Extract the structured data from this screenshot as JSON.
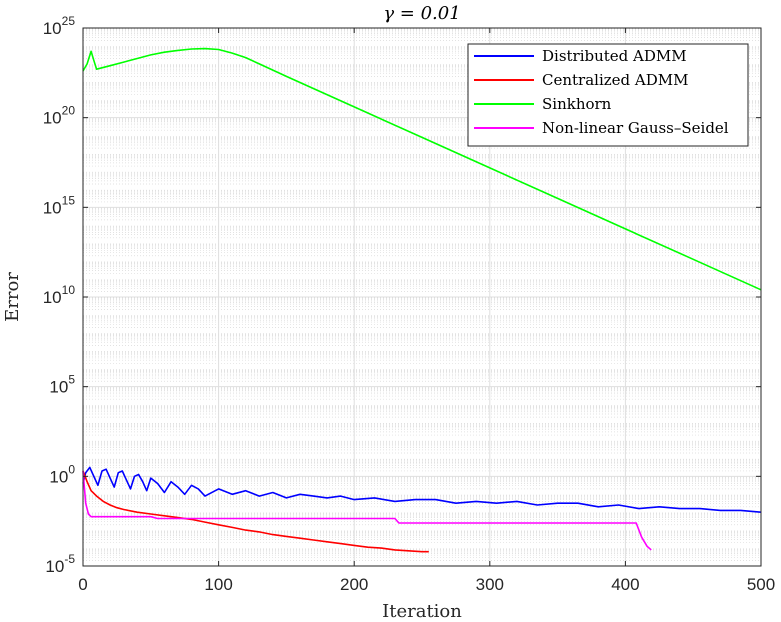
{
  "chart_data": {
    "type": "line",
    "title": "γ = 0.01",
    "xlabel": "Iteration",
    "ylabel": "Error",
    "xlim": [
      0,
      500
    ],
    "ylim_exponent": [
      -5,
      25
    ],
    "yscale": "log",
    "grid": true,
    "legend_placement": "top-right",
    "x_ticks": [
      0,
      100,
      200,
      300,
      400,
      500
    ],
    "y_tick_exponents": [
      -5,
      0,
      5,
      10,
      15,
      20,
      25
    ],
    "y_tick_base": "10",
    "series": [
      {
        "name": "Distributed ADMM",
        "color": "#0000ff",
        "log10_values_note": "y values given as log10(error)",
        "x": [
          0,
          2,
          5,
          8,
          11,
          14,
          17,
          20,
          23,
          26,
          29,
          32,
          35,
          38,
          41,
          44,
          47,
          50,
          55,
          60,
          65,
          70,
          75,
          80,
          85,
          90,
          100,
          110,
          120,
          130,
          140,
          150,
          160,
          170,
          180,
          190,
          200,
          215,
          230,
          245,
          260,
          275,
          290,
          305,
          320,
          335,
          350,
          365,
          380,
          395,
          410,
          425,
          440,
          455,
          470,
          485,
          500
        ],
        "y": [
          -0.4,
          0.2,
          0.5,
          0.0,
          -0.5,
          0.3,
          0.4,
          -0.1,
          -0.6,
          0.2,
          0.3,
          -0.2,
          -0.7,
          0.0,
          0.1,
          -0.3,
          -0.8,
          -0.1,
          -0.4,
          -0.9,
          -0.3,
          -0.6,
          -1.0,
          -0.5,
          -0.7,
          -1.1,
          -0.7,
          -1.0,
          -0.8,
          -1.1,
          -0.9,
          -1.2,
          -1.0,
          -1.1,
          -1.2,
          -1.1,
          -1.3,
          -1.2,
          -1.4,
          -1.3,
          -1.3,
          -1.5,
          -1.4,
          -1.5,
          -1.4,
          -1.6,
          -1.5,
          -1.5,
          -1.7,
          -1.6,
          -1.8,
          -1.7,
          -1.8,
          -1.8,
          -1.9,
          -1.9,
          -2.0
        ]
      },
      {
        "name": "Centralized ADMM",
        "color": "#ff0000",
        "x": [
          0,
          3,
          6,
          10,
          15,
          20,
          25,
          30,
          40,
          50,
          60,
          70,
          80,
          90,
          100,
          110,
          120,
          130,
          140,
          150,
          160,
          170,
          180,
          190,
          200,
          210,
          220,
          230,
          240,
          250,
          255
        ],
        "y": [
          0.3,
          -0.3,
          -0.8,
          -1.1,
          -1.4,
          -1.6,
          -1.75,
          -1.85,
          -2.0,
          -2.1,
          -2.2,
          -2.3,
          -2.4,
          -2.55,
          -2.7,
          -2.85,
          -3.0,
          -3.1,
          -3.25,
          -3.35,
          -3.45,
          -3.55,
          -3.65,
          -3.75,
          -3.85,
          -3.95,
          -4.0,
          -4.1,
          -4.15,
          -4.2,
          -4.2
        ]
      },
      {
        "name": "Sinkhorn",
        "color": "#00ff00",
        "x": [
          0,
          3,
          6,
          8,
          10,
          20,
          30,
          40,
          50,
          60,
          70,
          80,
          90,
          100,
          110,
          120,
          130,
          150,
          200,
          250,
          300,
          350,
          400,
          450,
          500
        ],
        "y": [
          22.6,
          23.0,
          23.7,
          23.2,
          22.7,
          22.9,
          23.1,
          23.3,
          23.5,
          23.65,
          23.75,
          23.83,
          23.85,
          23.8,
          23.6,
          23.35,
          23.0,
          22.3,
          20.6,
          18.9,
          17.2,
          15.5,
          13.8,
          12.1,
          10.4
        ]
      },
      {
        "name": "Non-linear Gauss–Seidel",
        "color": "#ff00ff",
        "x": [
          0,
          2,
          4,
          6,
          50,
          55,
          230,
          233,
          408,
          412,
          416,
          419
        ],
        "y": [
          0.3,
          -1.5,
          -2.1,
          -2.25,
          -2.25,
          -2.35,
          -2.35,
          -2.6,
          -2.6,
          -3.4,
          -3.9,
          -4.1
        ]
      }
    ]
  }
}
